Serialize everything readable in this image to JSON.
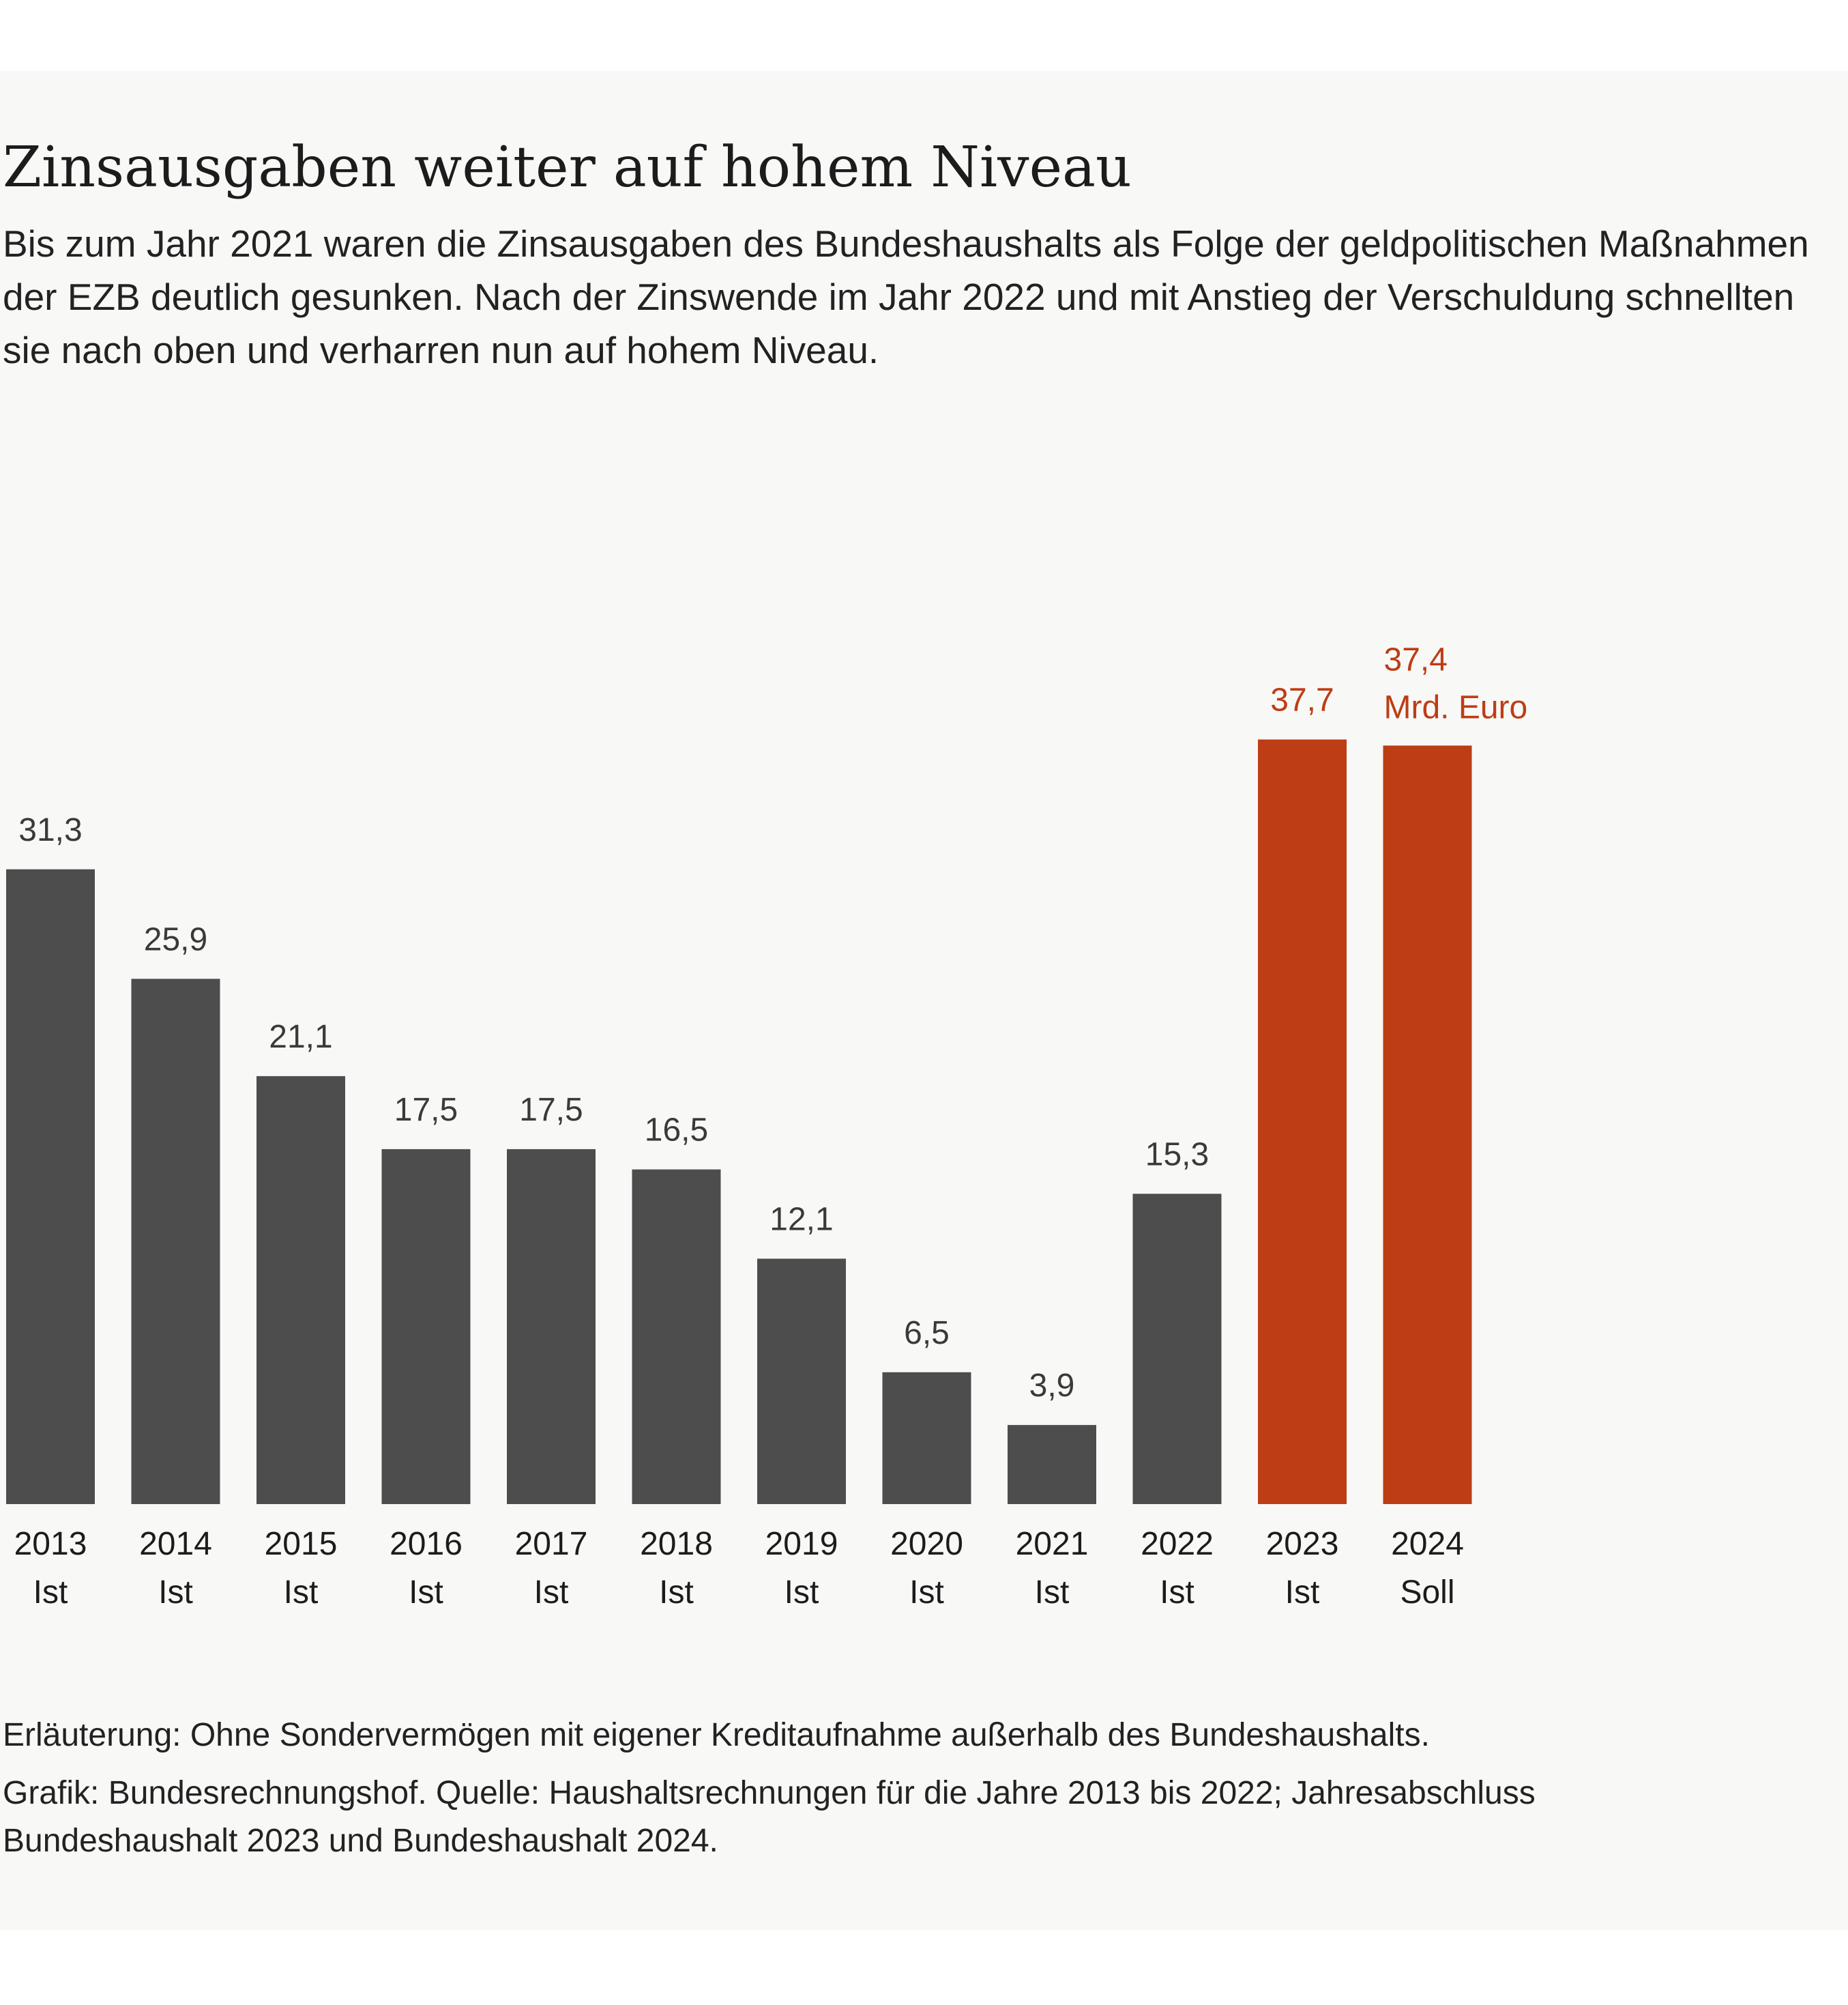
{
  "header": {
    "title": "Zinsausgaben weiter auf hohem Niveau",
    "subtitle": "Bis zum Jahr 2021 waren die Zinsausgaben des Bundeshaushalts als Folge der geldpolitischen Maßnahmen der EZB deutlich gesunken. Nach der Zinswende im Jahr 2022 und mit Anstieg der Verschuldung schnellten sie nach oben und verharren nun auf hohem Niveau."
  },
  "chart_data": {
    "type": "bar",
    "title": "Zinsausgaben weiter auf hohem Niveau",
    "xlabel": "",
    "ylabel": "",
    "unit": "Mrd. Euro",
    "ylim": [
      0,
      40
    ],
    "grid": false,
    "categories": [
      "2013",
      "2014",
      "2015",
      "2016",
      "2017",
      "2018",
      "2019",
      "2020",
      "2021",
      "2022",
      "2023",
      "2024"
    ],
    "category_sublabels": [
      "Ist",
      "Ist",
      "Ist",
      "Ist",
      "Ist",
      "Ist",
      "Ist",
      "Ist",
      "Ist",
      "Ist",
      "Ist",
      "Soll"
    ],
    "values": [
      31.3,
      25.9,
      21.1,
      17.5,
      17.5,
      16.5,
      12.1,
      6.5,
      3.9,
      15.3,
      37.7,
      37.4
    ],
    "value_labels": [
      "31,3",
      "25,9",
      "21,1",
      "17,5",
      "17,5",
      "16,5",
      "12,1",
      "6,5",
      "3,9",
      "15,3",
      "37,7",
      "37,4"
    ],
    "highlighted": [
      false,
      false,
      false,
      false,
      false,
      false,
      false,
      false,
      false,
      false,
      true,
      true
    ],
    "colors": {
      "default": "#4d4d4d",
      "highlight": "#bd3d14",
      "default_label": "#3a3a3a",
      "axis_label": "#1c1c1c"
    }
  },
  "footer": {
    "note": "Erläuterung: Ohne Sondervermögen mit eigener Kreditaufnahme außerhalb des Bundeshaushalts.",
    "source": "Grafik: Bundesrechnungshof. Quelle: Haushaltsrechnungen für die Jahre 2013 bis 2022; Jahresabschluss Bundeshaushalt 2023 und Bundeshaushalt 2024."
  }
}
